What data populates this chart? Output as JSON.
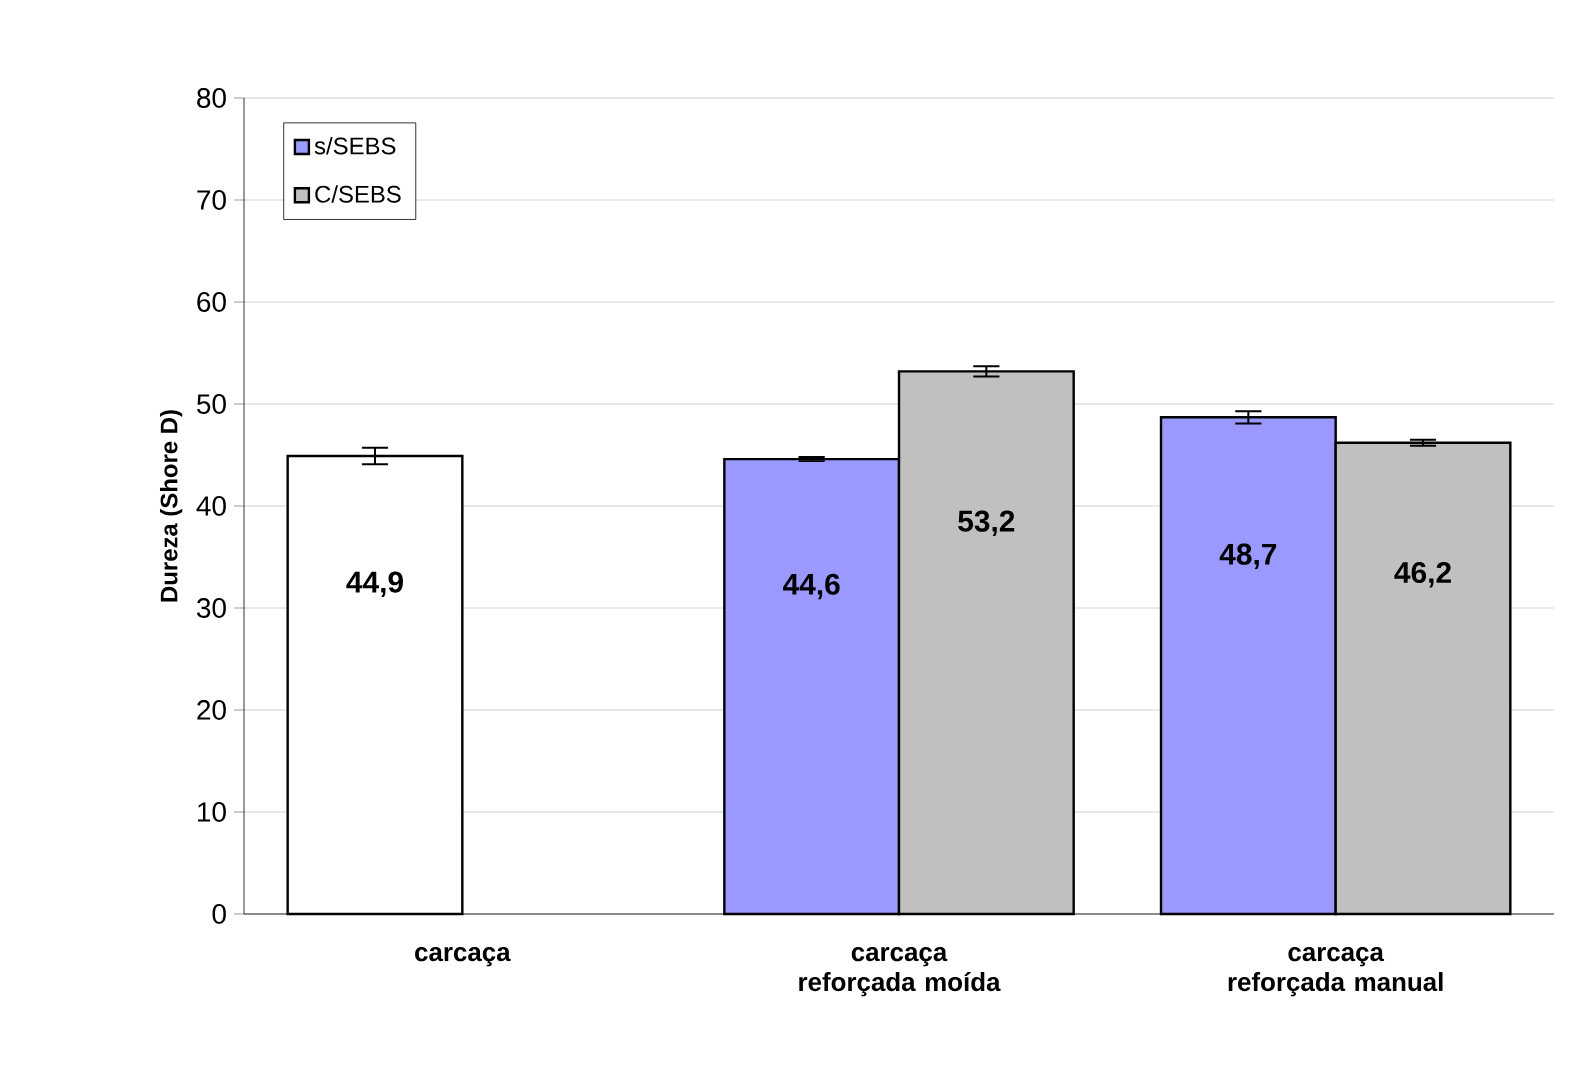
{
  "chart_data": {
    "type": "bar",
    "ylabel": "Dureza (Shore D)",
    "categories": [
      "carcaça",
      "carcaça reforçada moída",
      "carcaça reforçada manual"
    ],
    "series": [
      {
        "name": "s/SEBS",
        "color": "#9999ff",
        "colors": [
          "#ffffff",
          "#9999ff",
          "#9999ff"
        ],
        "values": [
          44.9,
          44.6,
          48.7
        ],
        "errors": [
          0.8,
          0.2,
          0.6
        ],
        "value_labels": [
          "44,9",
          "44,6",
          "48,7"
        ]
      },
      {
        "name": "C/SEBS",
        "color": "#c0c0c0",
        "values": [
          null,
          53.2,
          46.2
        ],
        "errors": [
          null,
          0.5,
          0.3
        ],
        "value_labels": [
          null,
          "53,2",
          "46,2"
        ]
      }
    ],
    "ylim": [
      0,
      80
    ],
    "yticks": [
      0,
      10,
      20,
      30,
      40,
      50,
      60,
      70,
      80
    ],
    "grid": "y",
    "legend": "top left"
  }
}
